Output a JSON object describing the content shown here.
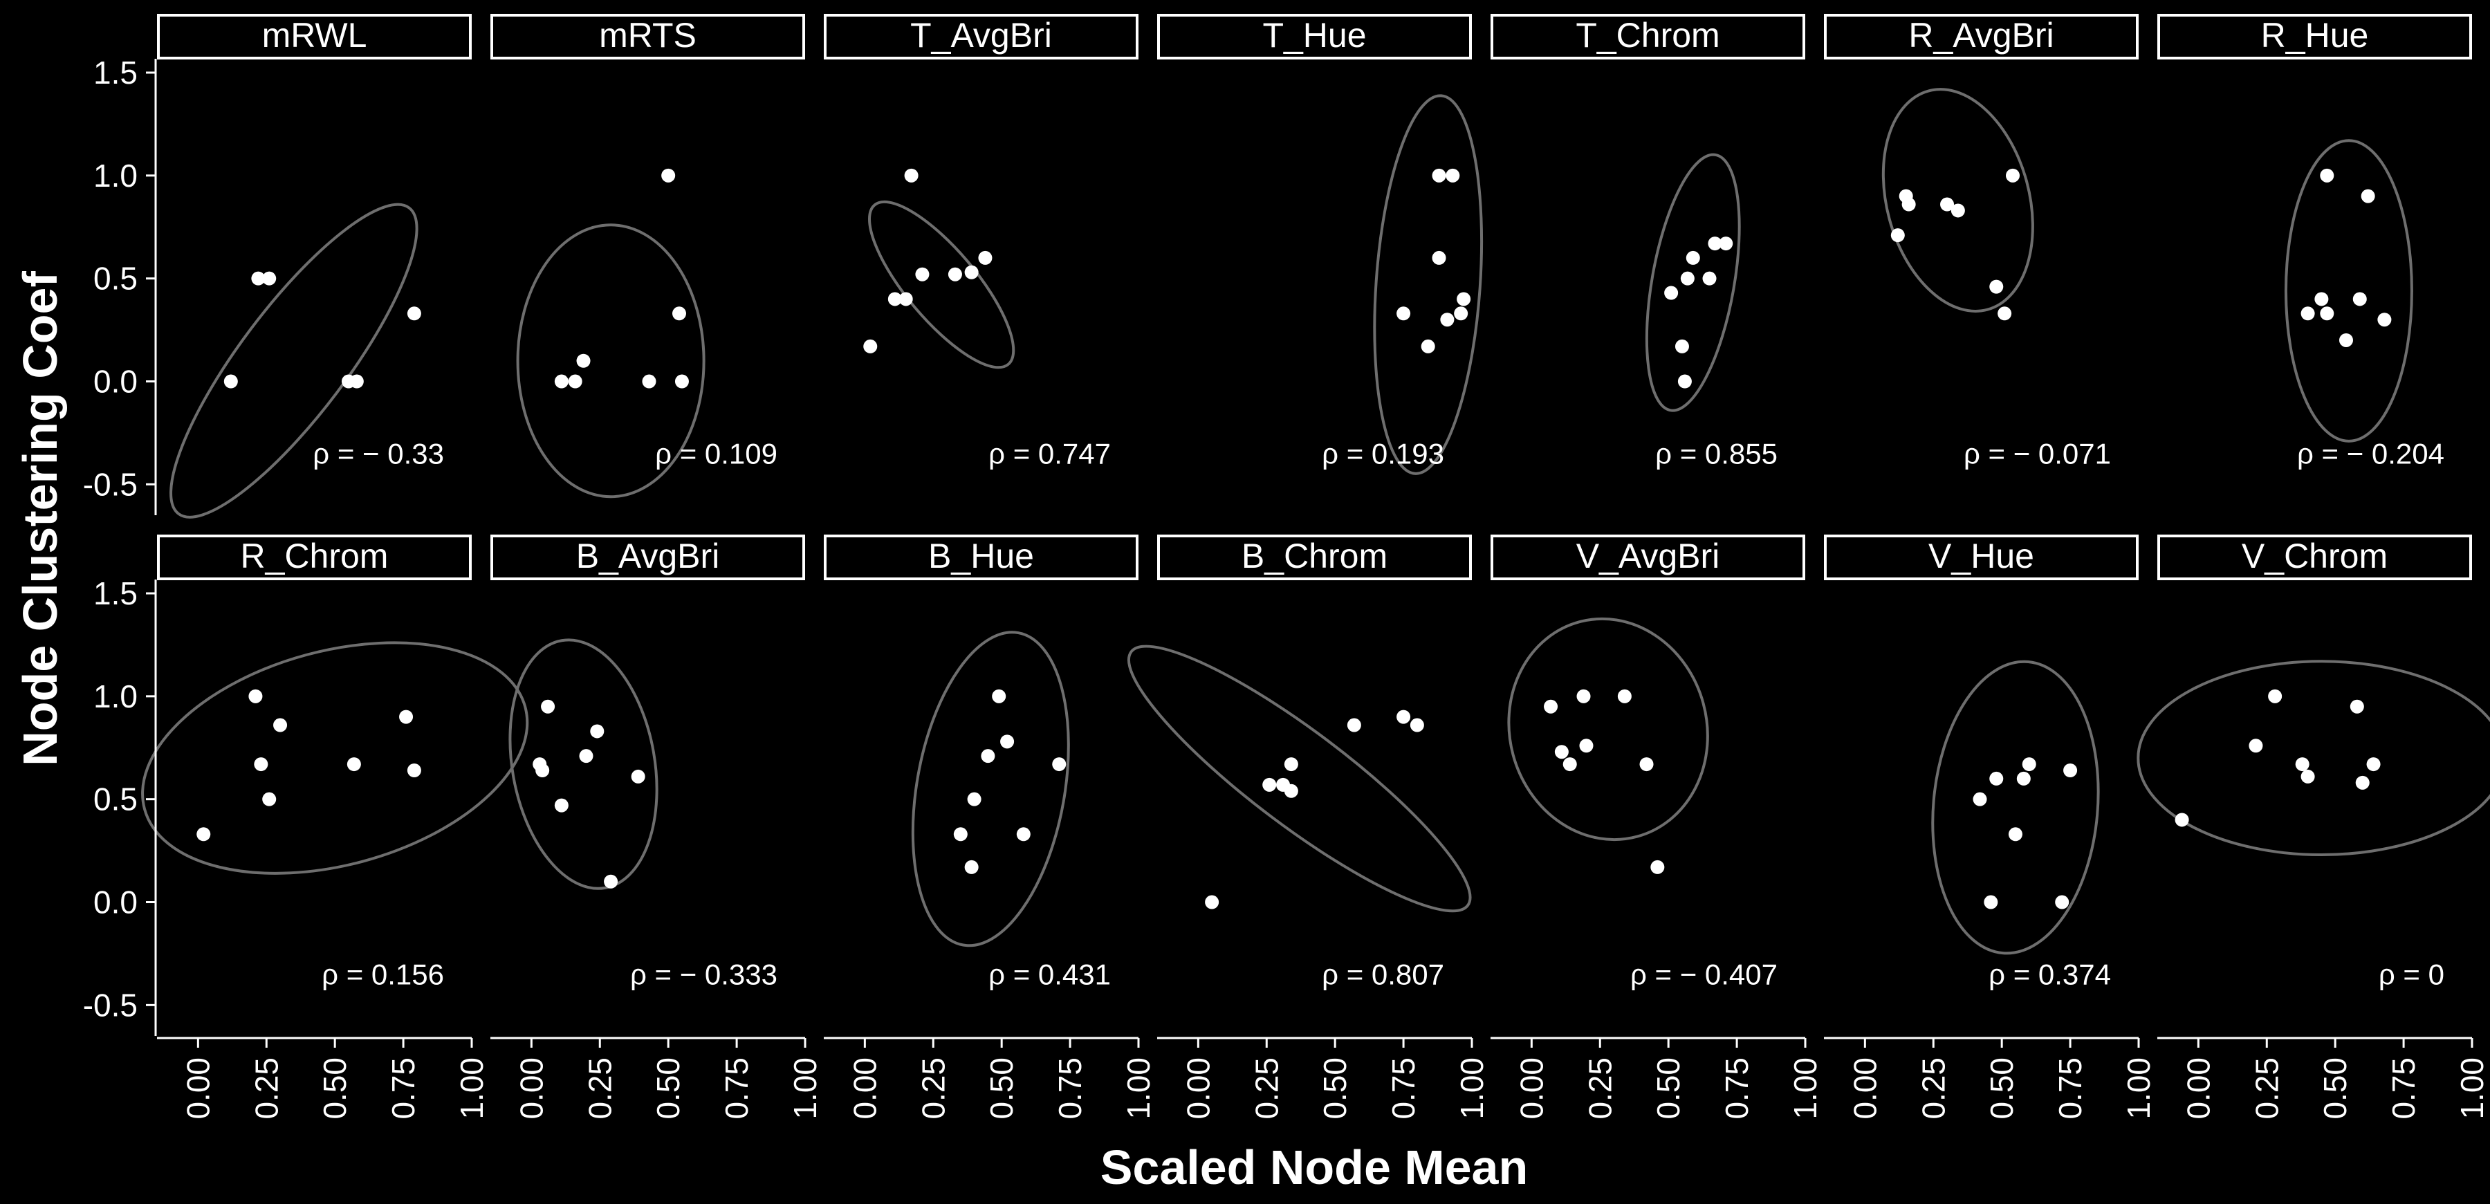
{
  "chart_data": {
    "type": "scatter",
    "xlabel": "Scaled Node Mean",
    "ylabel": "Node Clustering Coef",
    "xlim": [
      -0.15,
      1.0
    ],
    "ylim": [
      -0.65,
      1.5
    ],
    "xticks": [
      "0.00",
      "0.25",
      "0.50",
      "0.75",
      "1.00"
    ],
    "yticks": [
      "-0.5",
      "0.0",
      "0.5",
      "1.0",
      "1.5"
    ],
    "layout": {
      "rows": 2,
      "cols": 7
    },
    "background": "#000000",
    "point_color": "#ffffff",
    "ellipse_color": "#6e6e6e",
    "panels": [
      {
        "title": "mRWL",
        "rho_label": "ρ = − 0.33",
        "ellipse": {
          "cx": 0.35,
          "cy": 0.1,
          "rx": 0.7,
          "ry": 0.26,
          "angle": -53
        },
        "points": [
          [
            0.22,
            0.5
          ],
          [
            0.12,
            0.0
          ],
          [
            0.26,
            0.5
          ],
          [
            0.55,
            0.0
          ],
          [
            0.58,
            0.0
          ],
          [
            0.79,
            0.33
          ]
        ]
      },
      {
        "title": "mRTS",
        "rho_label": "ρ = 0.109",
        "ellipse": {
          "cx": 0.29,
          "cy": 0.1,
          "rx": 0.34,
          "ry": 0.66,
          "angle": 0
        },
        "points": [
          [
            0.11,
            0.0
          ],
          [
            0.16,
            0.0
          ],
          [
            0.19,
            0.1
          ],
          [
            0.5,
            1.0
          ],
          [
            0.54,
            0.33
          ],
          [
            0.43,
            0.0
          ],
          [
            0.55,
            0.0
          ]
        ]
      },
      {
        "title": "T_AvgBri",
        "rho_label": "ρ = 0.747",
        "ellipse": {
          "cx": 0.28,
          "cy": 0.47,
          "rx": 0.38,
          "ry": 0.17,
          "angle": 50
        },
        "points": [
          [
            0.17,
            1.0
          ],
          [
            0.02,
            0.17
          ],
          [
            0.11,
            0.4
          ],
          [
            0.15,
            0.4
          ],
          [
            0.21,
            0.52
          ],
          [
            0.33,
            0.52
          ],
          [
            0.39,
            0.53
          ],
          [
            0.44,
            0.6
          ]
        ]
      },
      {
        "title": "T_Hue",
        "rho_label": "ρ = 0.193",
        "ellipse": {
          "cx": 0.84,
          "cy": 0.47,
          "rx": 0.19,
          "ry": 0.92,
          "angle": 4
        },
        "points": [
          [
            0.75,
            0.33
          ],
          [
            0.84,
            0.17
          ],
          [
            0.88,
            0.6
          ],
          [
            0.88,
            1.0
          ],
          [
            0.91,
            0.3
          ],
          [
            0.93,
            1.0
          ],
          [
            0.96,
            0.33
          ],
          [
            0.97,
            0.4
          ]
        ]
      },
      {
        "title": "T_Chrom",
        "rho_label": "ρ = 0.855",
        "ellipse": {
          "cx": 0.59,
          "cy": 0.48,
          "rx": 0.15,
          "ry": 0.63,
          "angle": 10
        },
        "points": [
          [
            0.51,
            0.43
          ],
          [
            0.55,
            0.17
          ],
          [
            0.56,
            0.0
          ],
          [
            0.57,
            0.5
          ],
          [
            0.59,
            0.6
          ],
          [
            0.65,
            0.5
          ],
          [
            0.67,
            0.67
          ],
          [
            0.71,
            0.67
          ]
        ]
      },
      {
        "title": "R_AvgBri",
        "rho_label": "ρ = − 0.071",
        "ellipse": {
          "cx": 0.34,
          "cy": 0.88,
          "rx": 0.26,
          "ry": 0.55,
          "angle": -15
        },
        "points": [
          [
            0.12,
            0.71
          ],
          [
            0.15,
            0.9
          ],
          [
            0.16,
            0.86
          ],
          [
            0.3,
            0.86
          ],
          [
            0.34,
            0.83
          ],
          [
            0.48,
            0.46
          ],
          [
            0.51,
            0.33
          ],
          [
            0.54,
            1.0
          ]
        ]
      },
      {
        "title": "R_Hue",
        "rho_label": "ρ = − 0.204",
        "ellipse": {
          "cx": 0.55,
          "cy": 0.44,
          "rx": 0.23,
          "ry": 0.73,
          "angle": 0
        },
        "points": [
          [
            0.4,
            0.33
          ],
          [
            0.45,
            0.4
          ],
          [
            0.47,
            0.33
          ],
          [
            0.47,
            1.0
          ],
          [
            0.54,
            0.2
          ],
          [
            0.59,
            0.4
          ],
          [
            0.62,
            0.9
          ],
          [
            0.68,
            0.3
          ]
        ]
      },
      {
        "title": "R_Chrom",
        "rho_label": "ρ = 0.156",
        "ellipse": {
          "cx": 0.5,
          "cy": 0.7,
          "rx": 0.72,
          "ry": 0.52,
          "angle": -15
        },
        "points": [
          [
            0.02,
            0.33
          ],
          [
            0.21,
            1.0
          ],
          [
            0.23,
            0.67
          ],
          [
            0.26,
            0.5
          ],
          [
            0.3,
            0.86
          ],
          [
            0.57,
            0.67
          ],
          [
            0.76,
            0.9
          ],
          [
            0.79,
            0.64
          ]
        ]
      },
      {
        "title": "B_AvgBri",
        "rho_label": "ρ = − 0.333",
        "ellipse": {
          "cx": 0.19,
          "cy": 0.67,
          "rx": 0.26,
          "ry": 0.61,
          "angle": -10
        },
        "points": [
          [
            0.03,
            0.67
          ],
          [
            0.04,
            0.64
          ],
          [
            0.06,
            0.95
          ],
          [
            0.11,
            0.47
          ],
          [
            0.2,
            0.71
          ],
          [
            0.24,
            0.83
          ],
          [
            0.29,
            0.1
          ],
          [
            0.39,
            0.61
          ]
        ]
      },
      {
        "title": "B_Hue",
        "rho_label": "ρ = 0.431",
        "ellipse": {
          "cx": 0.46,
          "cy": 0.55,
          "rx": 0.27,
          "ry": 0.77,
          "angle": 10
        },
        "points": [
          [
            0.35,
            0.33
          ],
          [
            0.39,
            0.17
          ],
          [
            0.4,
            0.5
          ],
          [
            0.45,
            0.71
          ],
          [
            0.49,
            1.0
          ],
          [
            0.52,
            0.78
          ],
          [
            0.58,
            0.33
          ],
          [
            0.71,
            0.67
          ]
        ]
      },
      {
        "title": "B_Chrom",
        "rho_label": "ρ = 0.807",
        "ellipse": {
          "cx": 0.37,
          "cy": 0.6,
          "rx": 0.77,
          "ry": 0.23,
          "angle": 37
        },
        "points": [
          [
            0.05,
            0.0
          ],
          [
            0.26,
            0.57
          ],
          [
            0.31,
            0.57
          ],
          [
            0.34,
            0.54
          ],
          [
            0.34,
            0.67
          ],
          [
            0.57,
            0.86
          ],
          [
            0.75,
            0.9
          ],
          [
            0.8,
            0.86
          ]
        ]
      },
      {
        "title": "V_AvgBri",
        "rho_label": "ρ = − 0.407",
        "ellipse": {
          "cx": 0.28,
          "cy": 0.84,
          "rx": 0.36,
          "ry": 0.54,
          "angle": -15
        },
        "points": [
          [
            0.07,
            0.95
          ],
          [
            0.11,
            0.73
          ],
          [
            0.14,
            0.67
          ],
          [
            0.19,
            1.0
          ],
          [
            0.2,
            0.76
          ],
          [
            0.34,
            1.0
          ],
          [
            0.42,
            0.67
          ],
          [
            0.46,
            0.17
          ]
        ]
      },
      {
        "title": "V_Hue",
        "rho_label": "ρ = 0.374",
        "ellipse": {
          "cx": 0.55,
          "cy": 0.46,
          "rx": 0.3,
          "ry": 0.71,
          "angle": 5
        },
        "points": [
          [
            0.42,
            0.5
          ],
          [
            0.46,
            0.0
          ],
          [
            0.48,
            0.6
          ],
          [
            0.55,
            0.33
          ],
          [
            0.58,
            0.6
          ],
          [
            0.6,
            0.67
          ],
          [
            0.72,
            0.0
          ],
          [
            0.75,
            0.64
          ]
        ]
      },
      {
        "title": "V_Chrom",
        "rho_label": "ρ = 0",
        "ellipse": {
          "cx": 0.45,
          "cy": 0.7,
          "rx": 0.67,
          "ry": 0.47,
          "angle": 0
        },
        "points": [
          [
            -0.06,
            0.4
          ],
          [
            0.21,
            0.76
          ],
          [
            0.28,
            1.0
          ],
          [
            0.38,
            0.67
          ],
          [
            0.4,
            0.61
          ],
          [
            0.58,
            0.95
          ],
          [
            0.6,
            0.58
          ],
          [
            0.64,
            0.67
          ]
        ]
      }
    ]
  }
}
